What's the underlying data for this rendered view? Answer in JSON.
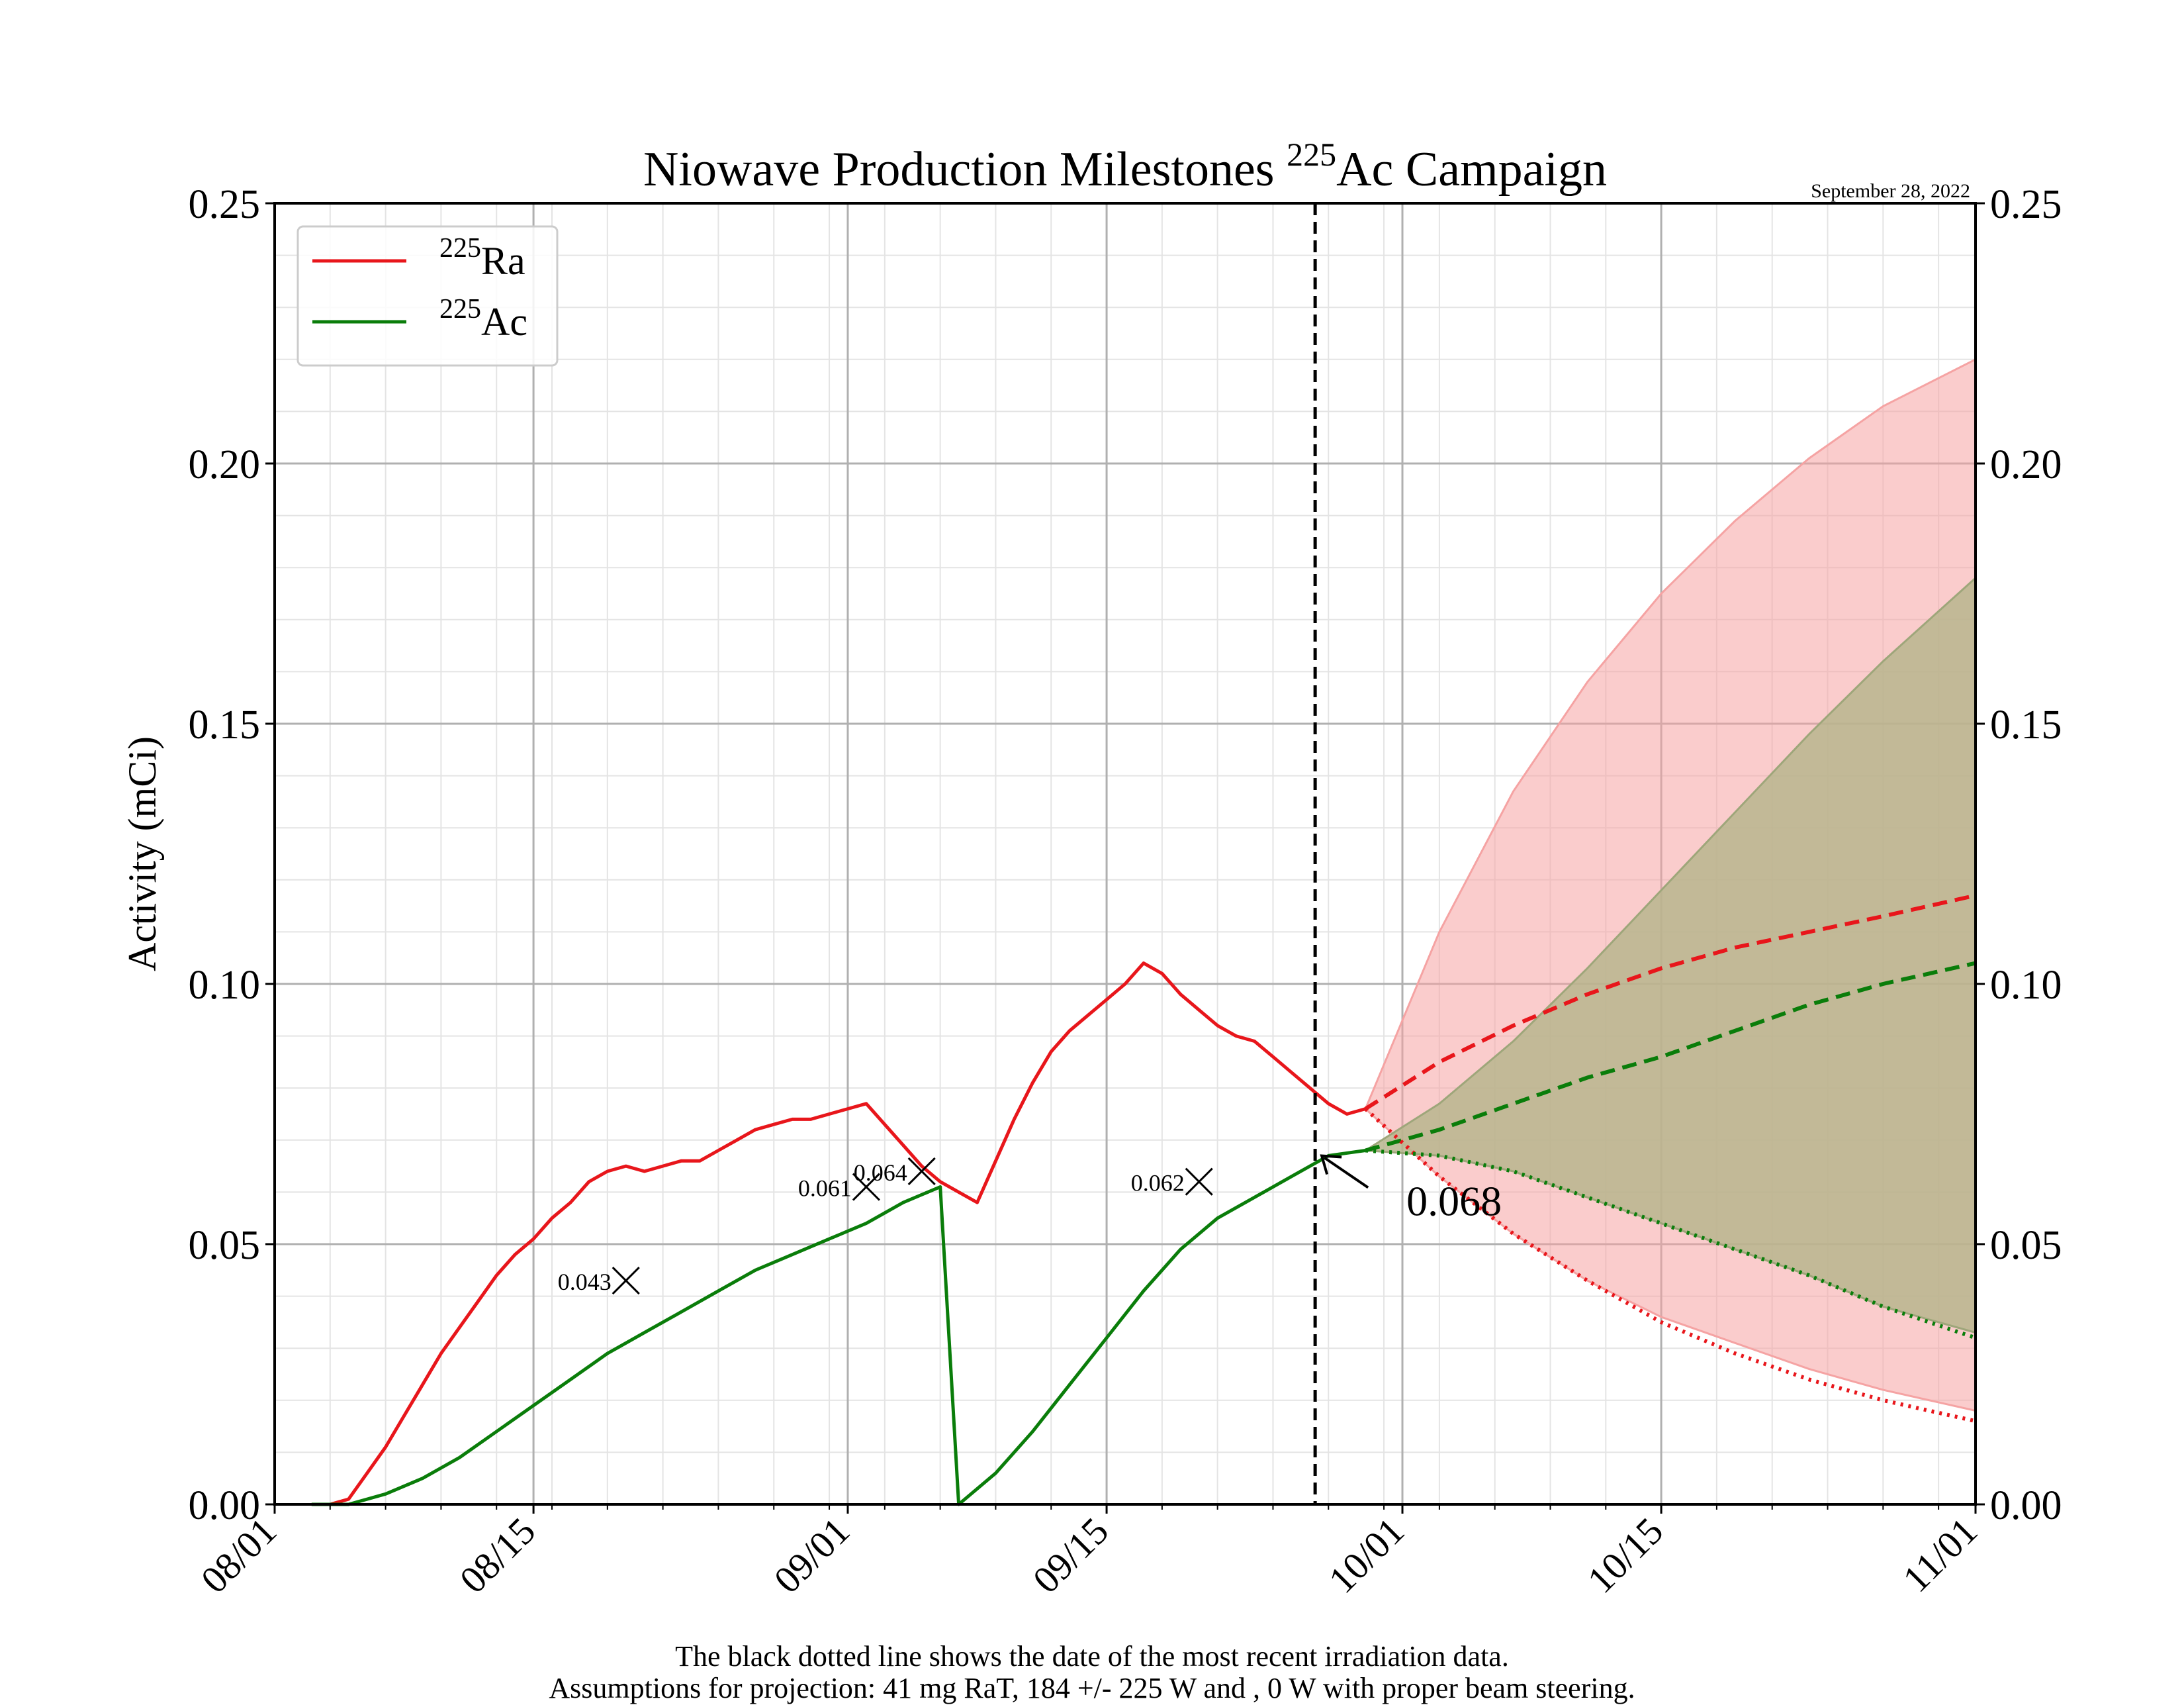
{
  "chart_data": {
    "type": "line",
    "title_prefix": "Niowave Production Milestones ",
    "title_sup": "225",
    "title_suffix": "Ac Campaign",
    "date_stamp": "September 28, 2022",
    "ylabel": "Activity (mCi)",
    "ylim": [
      0,
      0.25
    ],
    "y_ticks": [
      "0.00",
      "0.05",
      "0.10",
      "0.15",
      "0.20",
      "0.25"
    ],
    "x_range": [
      "08/01",
      "11/01"
    ],
    "x_ticks": [
      "08/01",
      "08/15",
      "09/01",
      "09/15",
      "10/01",
      "10/15",
      "11/01"
    ],
    "grid": true,
    "legend_position": "top-left",
    "colors": {
      "ra": "#e8161b",
      "ac": "#0a7d0a",
      "ra_band": "#f5a3a3",
      "ac_band": "#b7b58d"
    },
    "series": [
      {
        "name_sup": "225",
        "name": "Ra",
        "color": "#e8161b",
        "style": "solid",
        "points": [
          [
            "08/03",
            0.0
          ],
          [
            "08/04",
            0.0
          ],
          [
            "08/05",
            0.001
          ],
          [
            "08/06",
            0.006
          ],
          [
            "08/07",
            0.011
          ],
          [
            "08/08",
            0.017
          ],
          [
            "08/09",
            0.023
          ],
          [
            "08/10",
            0.029
          ],
          [
            "08/11",
            0.034
          ],
          [
            "08/12",
            0.039
          ],
          [
            "08/13",
            0.044
          ],
          [
            "08/14",
            0.048
          ],
          [
            "08/15",
            0.051
          ],
          [
            "08/16",
            0.055
          ],
          [
            "08/17",
            0.058
          ],
          [
            "08/18",
            0.062
          ],
          [
            "08/19",
            0.064
          ],
          [
            "08/20",
            0.065
          ],
          [
            "08/21",
            0.064
          ],
          [
            "08/22",
            0.065
          ],
          [
            "08/23",
            0.066
          ],
          [
            "08/24",
            0.066
          ],
          [
            "08/25",
            0.068
          ],
          [
            "08/26",
            0.07
          ],
          [
            "08/27",
            0.072
          ],
          [
            "08/28",
            0.073
          ],
          [
            "08/29",
            0.074
          ],
          [
            "08/30",
            0.074
          ],
          [
            "08/31",
            0.075
          ],
          [
            "09/01",
            0.076
          ],
          [
            "09/02",
            0.077
          ],
          [
            "09/03",
            0.073
          ],
          [
            "09/04",
            0.069
          ],
          [
            "09/05",
            0.065
          ],
          [
            "09/06",
            0.062
          ],
          [
            "09/07",
            0.06
          ],
          [
            "09/08",
            0.058
          ],
          [
            "09/09",
            0.066
          ],
          [
            "09/10",
            0.074
          ],
          [
            "09/11",
            0.081
          ],
          [
            "09/12",
            0.087
          ],
          [
            "09/13",
            0.091
          ],
          [
            "09/14",
            0.094
          ],
          [
            "09/15",
            0.097
          ],
          [
            "09/16",
            0.1
          ],
          [
            "09/17",
            0.104
          ],
          [
            "09/18",
            0.102
          ],
          [
            "09/19",
            0.098
          ],
          [
            "09/20",
            0.095
          ],
          [
            "09/21",
            0.092
          ],
          [
            "09/22",
            0.09
          ],
          [
            "09/23",
            0.089
          ],
          [
            "09/24",
            0.086
          ],
          [
            "09/25",
            0.083
          ],
          [
            "09/26",
            0.08
          ],
          [
            "09/27",
            0.077
          ],
          [
            "09/28",
            0.075
          ],
          [
            "09/29",
            0.076
          ]
        ]
      },
      {
        "name_sup": "225",
        "name": "Ac",
        "color": "#0a7d0a",
        "style": "solid",
        "points": [
          [
            "08/03",
            0.0
          ],
          [
            "08/05",
            0.0
          ],
          [
            "08/07",
            0.002
          ],
          [
            "08/09",
            0.005
          ],
          [
            "08/11",
            0.009
          ],
          [
            "08/13",
            0.014
          ],
          [
            "08/15",
            0.019
          ],
          [
            "08/17",
            0.024
          ],
          [
            "08/19",
            0.029
          ],
          [
            "08/21",
            0.033
          ],
          [
            "08/23",
            0.037
          ],
          [
            "08/25",
            0.041
          ],
          [
            "08/27",
            0.045
          ],
          [
            "08/29",
            0.048
          ],
          [
            "08/31",
            0.051
          ],
          [
            "09/02",
            0.054
          ],
          [
            "09/04",
            0.058
          ],
          [
            "09/06",
            0.061
          ],
          [
            "09/07",
            0.0
          ],
          [
            "09/09",
            0.006
          ],
          [
            "09/11",
            0.014
          ],
          [
            "09/13",
            0.023
          ],
          [
            "09/15",
            0.032
          ],
          [
            "09/17",
            0.041
          ],
          [
            "09/19",
            0.049
          ],
          [
            "09/21",
            0.055
          ],
          [
            "09/23",
            0.059
          ],
          [
            "09/25",
            0.063
          ],
          [
            "09/27",
            0.067
          ],
          [
            "09/29",
            0.068
          ]
        ]
      }
    ],
    "projections": {
      "x": [
        "09/29",
        "10/03",
        "10/07",
        "10/11",
        "10/15",
        "10/19",
        "10/23",
        "10/27",
        "11/01"
      ],
      "ra_central": [
        0.076,
        0.085,
        0.092,
        0.098,
        0.103,
        0.107,
        0.11,
        0.113,
        0.117
      ],
      "ra_low": [
        0.076,
        0.063,
        0.052,
        0.043,
        0.035,
        0.029,
        0.024,
        0.02,
        0.016
      ],
      "ra_band_high": [
        0.076,
        0.11,
        0.137,
        0.158,
        0.175,
        0.189,
        0.201,
        0.211,
        0.22
      ],
      "ra_band_low": [
        0.076,
        0.063,
        0.052,
        0.043,
        0.036,
        0.031,
        0.026,
        0.022,
        0.018
      ],
      "ac_central": [
        0.068,
        0.072,
        0.077,
        0.082,
        0.086,
        0.091,
        0.096,
        0.1,
        0.104
      ],
      "ac_low": [
        0.068,
        0.067,
        0.064,
        0.059,
        0.054,
        0.049,
        0.044,
        0.038,
        0.032
      ],
      "ac_band_high": [
        0.068,
        0.077,
        0.089,
        0.103,
        0.118,
        0.133,
        0.148,
        0.162,
        0.178
      ],
      "ac_band_low": [
        0.068,
        0.067,
        0.064,
        0.059,
        0.054,
        0.049,
        0.044,
        0.038,
        0.033
      ]
    },
    "milestones": [
      {
        "x": "08/20",
        "y": 0.043,
        "label": "0.043"
      },
      {
        "x": "09/02",
        "y": 0.061,
        "label": "0.061"
      },
      {
        "x": "09/05",
        "y": 0.064,
        "label": "0.064"
      },
      {
        "x": "09/20",
        "y": 0.062,
        "label": "0.062"
      }
    ],
    "last_data_date": "09/29",
    "annotation": {
      "x": "09/29",
      "y": 0.068,
      "label": "0.068"
    }
  },
  "caption": {
    "line1": "The black dotted line shows the date of the most recent irradiation data.",
    "line2": "Assumptions for projection: 41 mg RaT, 184 +/- 225 W and , 0 W with proper beam steering."
  }
}
